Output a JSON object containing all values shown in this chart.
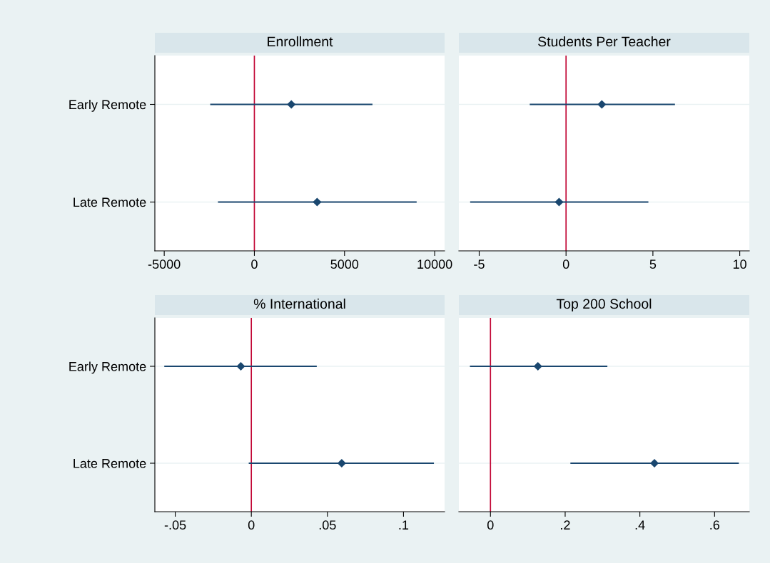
{
  "chart_data": [
    {
      "type": "scatter",
      "title": "Enrollment",
      "orientation": "horizontal",
      "categories": [
        "Early Remote",
        "Late Remote"
      ],
      "values": [
        2050,
        3480
      ],
      "errors": [
        [
          -2450,
          6550
        ],
        [
          -2020,
          9000
        ]
      ],
      "color": "#1a476f",
      "marker": "diamond",
      "xlim": [
        -5520,
        10550
      ],
      "xticks": [
        -5000,
        0,
        5000,
        10000
      ],
      "grid": "y",
      "ref_lines": [
        {
          "axis": "x",
          "value": 0,
          "color": "#c10534"
        }
      ]
    },
    {
      "type": "scatter",
      "title": "Students Per Teacher",
      "orientation": "horizontal",
      "categories": [
        null,
        null
      ],
      "values": [
        2.06,
        -0.4
      ],
      "errors": [
        [
          -2.09,
          6.27
        ],
        [
          -5.52,
          4.74
        ]
      ],
      "color": "#1a476f",
      "marker": "diamond",
      "xlim": [
        -6.17,
        10.55
      ],
      "xticks": [
        -5,
        0,
        5,
        10
      ],
      "grid": "y",
      "tick_labels": "x",
      "ref_lines": [
        {
          "axis": "x",
          "value": 0,
          "color": "#c10534"
        }
      ]
    },
    {
      "type": "scatter",
      "title": "% International",
      "orientation": "horizontal",
      "categories": [
        "Early Remote",
        "Late Remote"
      ],
      "values": [
        -0.0069,
        0.0594
      ],
      "errors": [
        [
          -0.0572,
          0.043
        ],
        [
          -0.0017,
          0.12
        ]
      ],
      "color": "#1a476f",
      "marker": "diamond",
      "xlim": [
        -0.0634,
        0.127
      ],
      "xticks": [
        {
          "value": -0.05,
          "label": "-.05"
        },
        0,
        {
          "value": 0.05,
          "label": ".05"
        },
        {
          "value": 0.1,
          "label": ".1"
        }
      ],
      "grid": "y",
      "ref_lines": [
        {
          "axis": "x",
          "value": 0,
          "color": "#c10534"
        }
      ]
    },
    {
      "type": "scatter",
      "title": "Top 200 School",
      "orientation": "horizontal",
      "categories": [
        null,
        null
      ],
      "values": [
        0.127,
        0.439
      ],
      "errors": [
        [
          -0.055,
          0.313
        ],
        [
          0.214,
          0.665
        ]
      ],
      "color": "#1a476f",
      "marker": "diamond",
      "xlim": [
        -0.0846,
        0.693
      ],
      "xticks": [
        0,
        {
          "value": 0.2,
          "label": ".2"
        },
        {
          "value": 0.4,
          "label": ".4"
        },
        {
          "value": 0.6,
          "label": ".6"
        }
      ],
      "grid": "y",
      "tick_labels": "x",
      "ref_lines": [
        {
          "axis": "x",
          "value": 0,
          "color": "#c10534"
        }
      ]
    }
  ]
}
